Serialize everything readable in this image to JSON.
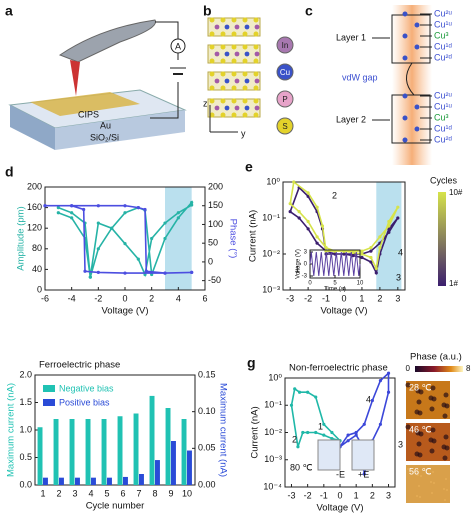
{
  "diagram": {
    "a": {
      "label": "a",
      "meter": "A",
      "film": "CIPS",
      "electrode": "Au",
      "substrate": "SiO₂/Si"
    },
    "b": {
      "label": "b",
      "axis_z": "z",
      "axis_y": "y",
      "atoms": [
        "In",
        "Cu",
        "P",
        "S"
      ]
    },
    "c": {
      "label": "c",
      "layer1": "Layer 1",
      "gap": "vdW gap",
      "layer2": "Layer 2",
      "sites1": [
        "Cu²ᵘ",
        "Cu¹ᵘ",
        "Cu³",
        "Cu¹ᵈ",
        "Cu²ᵈ"
      ],
      "sites2": [
        "Cu²ᵘ",
        "Cu¹ᵘ",
        "Cu³",
        "Cu¹ᵈ",
        "Cu²ᵈ"
      ]
    }
  },
  "chart_data": [
    {
      "type": "line",
      "panel_label": "d",
      "xlabel": "Voltage (V)",
      "ylabel": "Amplitude (pm)",
      "y2label": "Phase (°)",
      "xlim": [
        -6,
        6
      ],
      "xticks": [
        -6,
        -4,
        -2,
        0,
        2,
        4,
        6
      ],
      "ylim": [
        0,
        200
      ],
      "yticks": [
        0,
        40,
        80,
        120,
        160,
        200
      ],
      "y2lim": [
        -75,
        200
      ],
      "y2ticks": [
        -50,
        0,
        50,
        100,
        150,
        200
      ],
      "highlight_x": [
        3,
        5
      ],
      "series": [
        {
          "name": "Amplitude",
          "color": "#26b3a6",
          "x": [
            -5,
            -4,
            -3,
            -2.6,
            -2,
            -1,
            0,
            1,
            1.5,
            2,
            3,
            4,
            5,
            5,
            4,
            3,
            2,
            1.5,
            1,
            0,
            -1,
            -2,
            -2.6,
            -3,
            -4,
            -5
          ],
          "values": [
            160,
            150,
            130,
            25,
            80,
            120,
            150,
            160,
            155,
            30,
            100,
            140,
            170,
            165,
            150,
            130,
            100,
            30,
            60,
            90,
            120,
            130,
            25,
            100,
            140,
            150
          ]
        },
        {
          "name": "Phase",
          "color": "#4c4ee0",
          "axis": "y2",
          "x": [
            -6,
            -4,
            -2,
            0,
            1,
            1.5,
            1.6,
            3,
            5,
            5,
            3,
            0,
            -2,
            -3,
            -3.1,
            -4,
            -6
          ],
          "values": [
            150,
            150,
            150,
            150,
            145,
            140,
            -25,
            -30,
            -28,
            -28,
            -30,
            -30,
            -28,
            -25,
            140,
            150,
            150
          ]
        }
      ]
    },
    {
      "type": "line",
      "panel_label": "e",
      "xlabel": "Voltage (V)",
      "ylabel": "Current (nA)",
      "ylog": true,
      "xlim": [
        -3.4,
        3.4
      ],
      "xticks": [
        -3,
        -2,
        -1,
        0,
        1,
        2,
        3
      ],
      "ylim": [
        0.001,
        1
      ],
      "yticks": [
        {
          "value": 0.001,
          "label": "10⁻³"
        },
        {
          "value": 0.01,
          "label": "10⁻²"
        },
        {
          "value": 0.1,
          "label": "10⁻¹"
        },
        {
          "value": 1,
          "label": "10⁰"
        }
      ],
      "highlight_x": [
        1.8,
        3.2
      ],
      "colorbar_title": "Cycles",
      "annotations": [
        "1",
        "2",
        "3",
        "4"
      ],
      "series": [
        {
          "name": "1#",
          "color": "#3b1e6e",
          "x": [
            0,
            0.5,
            1,
            1.5,
            1.8,
            2,
            2.5,
            3,
            2.5,
            2,
            1.5,
            1,
            0,
            -0.5,
            -1,
            -1.5,
            -2,
            -2.5,
            -3,
            -2.5,
            -2,
            -1.5,
            -1.2,
            -1,
            -0.5,
            0
          ],
          "values": [
            0.01,
            0.009,
            0.008,
            0.006,
            0.003,
            0.01,
            0.05,
            0.1,
            0.04,
            0.02,
            0.012,
            0.01,
            0.01,
            0.01,
            0.012,
            0.02,
            0.05,
            0.1,
            0.15,
            0.7,
            0.4,
            0.15,
            0.05,
            0.01,
            0.01,
            0.01
          ]
        },
        {
          "name": "10#",
          "color": "#d6e34a",
          "x": [
            0,
            0.5,
            1,
            1.5,
            1.8,
            2,
            2.5,
            3,
            2.5,
            2,
            1.5,
            1,
            0,
            -0.5,
            -1,
            -1.5,
            -2,
            -2.5,
            -3,
            -2.8,
            -2,
            -1.5,
            -1.2,
            -1,
            -0.5,
            0
          ],
          "values": [
            0.012,
            0.011,
            0.01,
            0.008,
            0.004,
            0.015,
            0.08,
            0.2,
            0.06,
            0.03,
            0.015,
            0.012,
            0.012,
            0.012,
            0.015,
            0.03,
            0.08,
            0.15,
            0.25,
            1,
            0.5,
            0.2,
            0.06,
            0.012,
            0.012,
            0.012
          ]
        }
      ],
      "inset": {
        "xlabel": "Time (s)",
        "ylabel": "Voltage (V)",
        "xlim": [
          0,
          10
        ],
        "xticks": [
          0,
          5,
          10
        ],
        "ylim": [
          -3.5,
          3.5
        ],
        "yticks": [
          -3,
          0,
          3
        ],
        "series": [
          {
            "color": "#5a3fa0",
            "x": [
              0,
              0.25,
              0.5,
              0.75,
              1,
              1.25,
              1.5,
              1.75,
              2,
              2.25,
              2.5,
              2.75,
              3,
              3.25,
              3.5,
              3.75,
              4,
              4.25,
              4.5,
              4.75,
              5,
              5.25,
              5.5,
              5.75,
              6,
              6.25,
              6.5,
              6.75,
              7,
              7.25,
              7.5,
              7.75,
              8,
              8.25,
              8.5,
              8.75,
              9,
              9.25,
              9.5,
              9.75,
              10
            ],
            "values": [
              0,
              3,
              0,
              -3,
              0,
              3,
              0,
              -3,
              0,
              3,
              0,
              -3,
              0,
              3,
              0,
              -3,
              0,
              3,
              0,
              -3,
              0,
              3,
              0,
              -3,
              0,
              3,
              0,
              -3,
              0,
              3,
              0,
              -3,
              0,
              3,
              0,
              -3,
              0,
              3,
              0,
              -3,
              0
            ]
          }
        ]
      }
    },
    {
      "type": "bar",
      "panel_label": "f",
      "title": "Ferroelectric phase",
      "xlabel": "Cycle number",
      "ylabel": "Maximum current (nA)",
      "y2label": "Maximum current (nA)",
      "categories": [
        "1",
        "2",
        "3",
        "4",
        "5",
        "6",
        "7",
        "8",
        "9",
        "10"
      ],
      "ylim": [
        0,
        2
      ],
      "yticks": [
        {
          "value": 0,
          "label": "0.0"
        },
        0.5,
        {
          "value": 1,
          "label": "1.0"
        },
        1.5,
        {
          "value": 2,
          "label": "2.0"
        }
      ],
      "y2lim": [
        0,
        0.15
      ],
      "y2ticks": [
        {
          "value": 0,
          "label": "0.00"
        },
        0.05,
        {
          "value": 0.1,
          "label": "0.10"
        },
        0.15
      ],
      "series": [
        {
          "name": "Negative bias",
          "color": "#20c2b3",
          "values": [
            1.05,
            1.2,
            1.2,
            1.2,
            1.2,
            1.25,
            1.3,
            1.62,
            1.4,
            1.2
          ]
        },
        {
          "name": "Positive bias",
          "color": "#2a4bd7",
          "axis": "y2",
          "values": [
            0.01,
            0.01,
            0.01,
            0.01,
            0.01,
            0.011,
            0.015,
            0.034,
            0.06,
            0.047
          ]
        }
      ]
    },
    {
      "type": "line",
      "panel_label": "g",
      "title": "Non-ferroelectric phase",
      "xlabel": "Voltage (V)",
      "ylabel": "Current (nA)",
      "ylog": true,
      "xlim": [
        -3.4,
        3.4
      ],
      "xticks": [
        -3,
        -2,
        -1,
        0,
        1,
        2,
        3
      ],
      "ylim": [
        0.0001,
        1
      ],
      "yticks": [
        {
          "value": 0.0001,
          "label": "10⁻⁴"
        },
        {
          "value": 0.001,
          "label": "10⁻³"
        },
        {
          "value": 0.01,
          "label": "10⁻²"
        },
        {
          "value": 0.1,
          "label": "10⁻¹"
        },
        {
          "value": 1,
          "label": "10⁰"
        }
      ],
      "annotations": [
        "1",
        "2",
        "3",
        "4",
        "80 ℃",
        "-E",
        "+E"
      ],
      "series": [
        {
          "color": "#1fb8a8",
          "x": [
            0,
            -0.5,
            -1,
            -1.5,
            -2,
            -2.3,
            -2.6,
            -3,
            -2.8,
            -2.5,
            -2,
            -1.5,
            -1,
            -0.5,
            0
          ],
          "values": [
            0.005,
            0.006,
            0.008,
            0.01,
            0.01,
            0.01,
            0.003,
            0.1,
            0.4,
            0.3,
            0.3,
            0.2,
            0.02,
            0.01,
            0.005
          ]
        },
        {
          "color": "#3b47d9",
          "x": [
            0,
            0.5,
            1,
            1.3,
            1.5,
            2,
            2.5,
            3,
            3,
            2.5,
            2,
            1.5,
            1,
            0.5,
            0
          ],
          "values": [
            0.003,
            0.005,
            0.008,
            0.004,
            0.0003,
            0.005,
            0.02,
            0.3,
            1.5,
            0.8,
            0.15,
            0.02,
            0.01,
            0.008,
            0.003
          ]
        }
      ],
      "phase_title": "Phase (a.u.)",
      "phase_min": 0,
      "phase_max": 8,
      "phase_images": [
        "28 ℃",
        "46 ℃",
        "56 ℃"
      ]
    }
  ]
}
